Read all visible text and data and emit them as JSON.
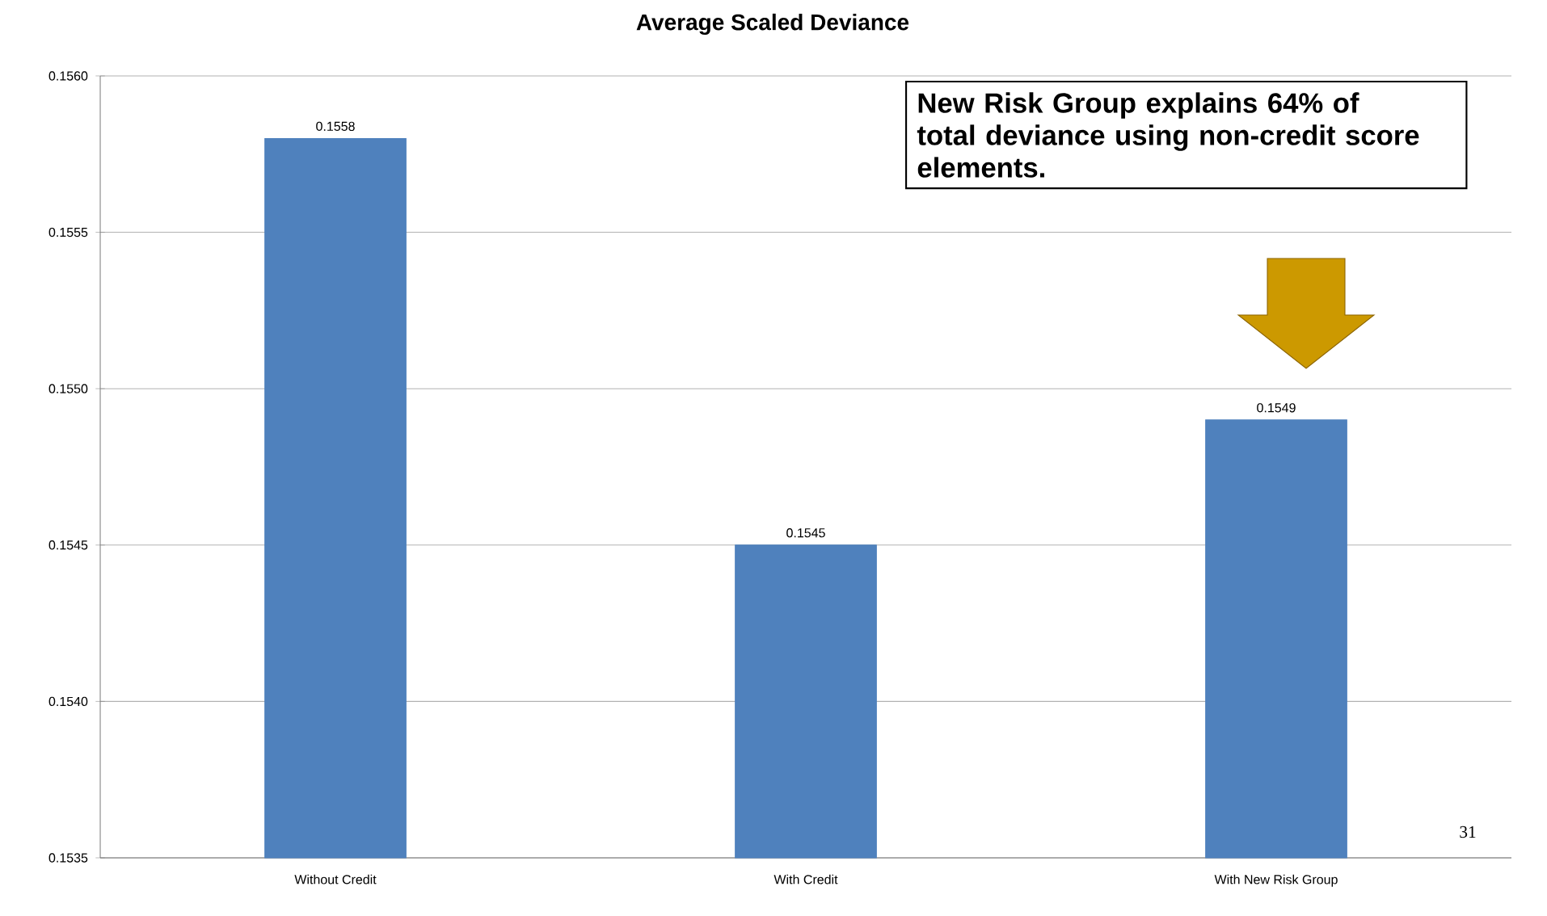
{
  "chart_data": {
    "type": "bar",
    "title": "Average Scaled Deviance",
    "categories": [
      "Without Credit",
      "With Credit",
      "With New Risk Group"
    ],
    "values": [
      0.1558,
      0.1545,
      0.1549
    ],
    "value_labels": [
      "0.1558",
      "0.1545",
      "0.1549"
    ],
    "color": "#4f81bd",
    "ylim": [
      0.1535,
      0.156
    ],
    "yticks": [
      {
        "value": 0.1535,
        "label": "0.1535"
      },
      {
        "value": 0.154,
        "label": "0.1540"
      },
      {
        "value": 0.1545,
        "label": "0.1545"
      },
      {
        "value": 0.155,
        "label": "0.1550"
      },
      {
        "value": 0.1555,
        "label": "0.1555"
      },
      {
        "value": 0.156,
        "label": "0.1560"
      }
    ],
    "grid": "y",
    "annotations": [
      "New Risk Group explains 64% of total deviance using non-credit score elements.",
      "31"
    ]
  }
}
